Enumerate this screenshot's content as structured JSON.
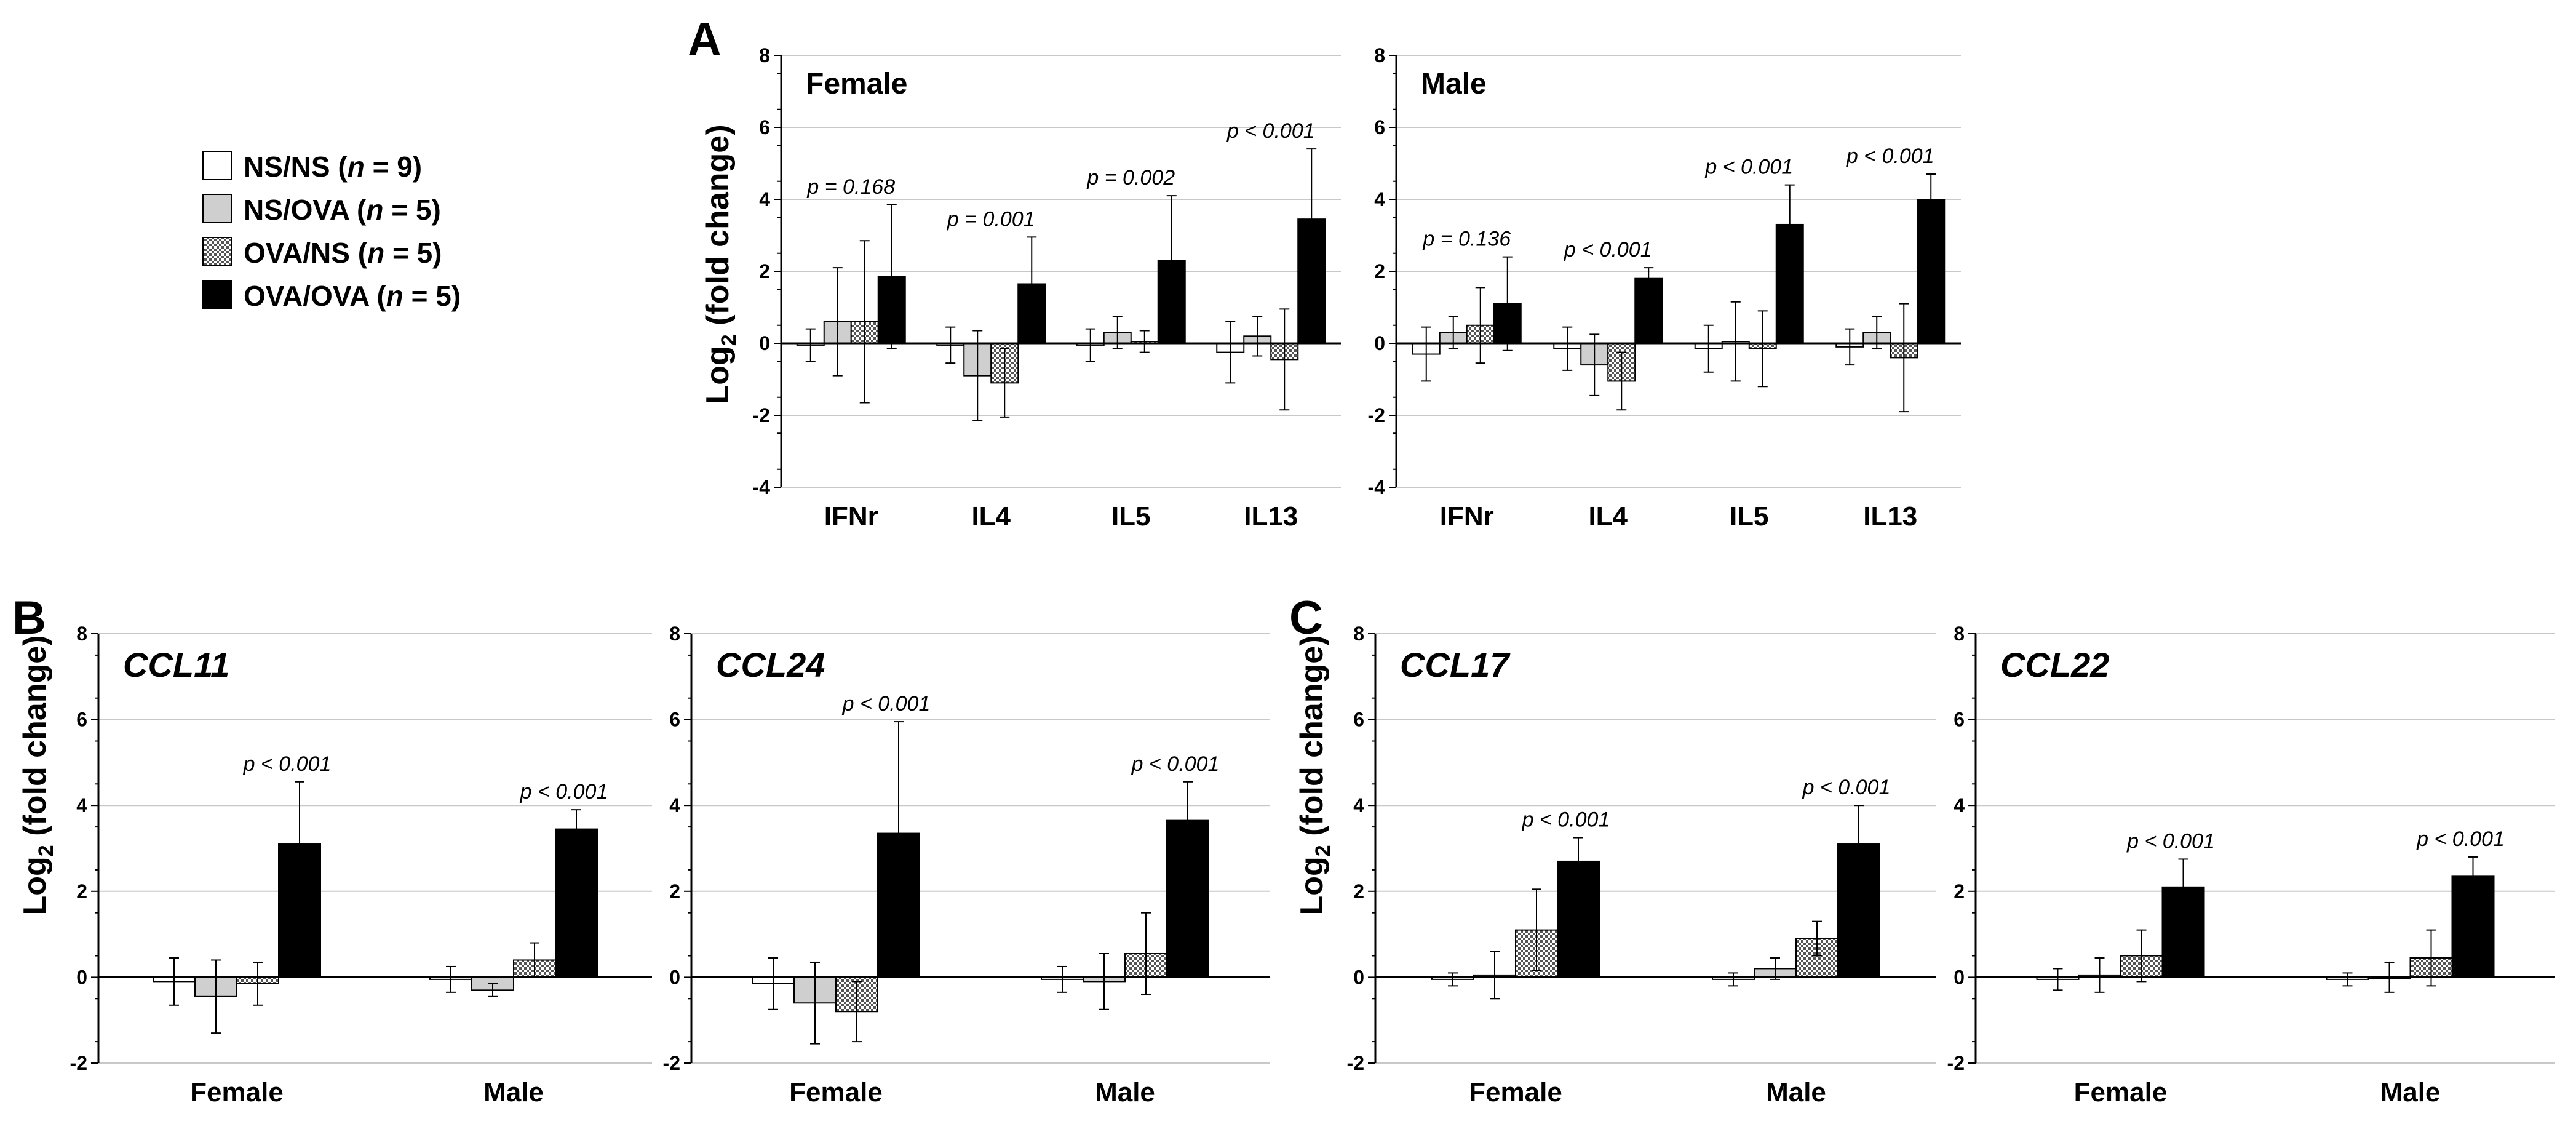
{
  "legend": {
    "items": [
      {
        "key": "nsns",
        "label": "NS/NS (n = 9)",
        "pre": "NS/NS (",
        "n": "n",
        "post": " = 9)",
        "fill": "#ffffff"
      },
      {
        "key": "nsova",
        "label": "NS/OVA (n = 5)",
        "pre": "NS/OVA (",
        "n": "n",
        "post": " = 5)",
        "fill": "#cfcfcf"
      },
      {
        "key": "ovans",
        "label": "OVA/NS (n = 5)",
        "pre": "OVA/NS (",
        "n": "n",
        "post": " = 5)",
        "fill": "pattern"
      },
      {
        "key": "ovaova",
        "label": "OVA/OVA (n = 5)",
        "pre": "OVA/OVA (",
        "n": "n",
        "post": " = 5)",
        "fill": "#000000"
      }
    ]
  },
  "y_label": {
    "pre": "Log",
    "sub": "2",
    "post": " (fold change)"
  },
  "panel_labels": [
    "A",
    "B",
    "C"
  ],
  "chart_data": [
    {
      "type": "bar",
      "panel": "A",
      "title": "Female",
      "title_style": "normal",
      "categories": [
        "IFNr",
        "IL4",
        "IL5",
        "IL13"
      ],
      "ylim": [
        -4,
        8
      ],
      "yticks": [
        -4,
        -2,
        0,
        2,
        4,
        6,
        8
      ],
      "grid": true,
      "series": [
        {
          "name": "NS/NS",
          "values": [
            -0.05,
            -0.05,
            -0.05,
            -0.25
          ],
          "err": [
            0.45,
            0.5,
            0.45,
            0.85
          ]
        },
        {
          "name": "NS/OVA",
          "values": [
            0.6,
            -0.9,
            0.3,
            0.2
          ],
          "err": [
            1.5,
            1.25,
            0.45,
            0.55
          ]
        },
        {
          "name": "OVA/NS",
          "values": [
            0.6,
            -1.1,
            0.05,
            -0.45
          ],
          "err": [
            2.25,
            0.95,
            0.3,
            1.4
          ]
        },
        {
          "name": "OVA/OVA",
          "values": [
            1.85,
            1.65,
            2.3,
            3.45
          ],
          "err": [
            2.0,
            1.3,
            1.8,
            1.95
          ]
        }
      ],
      "annotations": [
        "p = 0.168",
        "p = 0.001",
        "p = 0.002",
        "p < 0.001"
      ]
    },
    {
      "type": "bar",
      "panel": "A",
      "title": "Male",
      "title_style": "normal",
      "categories": [
        "IFNr",
        "IL4",
        "IL5",
        "IL13"
      ],
      "ylim": [
        -4,
        8
      ],
      "yticks": [
        -4,
        -2,
        0,
        2,
        4,
        6,
        8
      ],
      "grid": true,
      "series": [
        {
          "name": "NS/NS",
          "values": [
            -0.3,
            -0.15,
            -0.15,
            -0.1
          ],
          "err": [
            0.75,
            0.6,
            0.65,
            0.5
          ]
        },
        {
          "name": "NS/OVA",
          "values": [
            0.3,
            -0.6,
            0.05,
            0.3
          ],
          "err": [
            0.45,
            0.85,
            1.1,
            0.45
          ]
        },
        {
          "name": "OVA/NS",
          "values": [
            0.5,
            -1.05,
            -0.15,
            -0.4
          ],
          "err": [
            1.05,
            0.8,
            1.05,
            1.5
          ]
        },
        {
          "name": "OVA/OVA",
          "values": [
            1.1,
            1.8,
            3.3,
            4.0
          ],
          "err": [
            1.3,
            0.3,
            1.1,
            0.7
          ]
        }
      ],
      "annotations": [
        "p = 0.136",
        "p < 0.001",
        "p < 0.001",
        "p < 0.001"
      ]
    },
    {
      "type": "bar",
      "panel": "B",
      "title": "CCL11",
      "title_style": "italic",
      "categories": [
        "Female",
        "Male"
      ],
      "ylim": [
        -2,
        8
      ],
      "yticks": [
        -2,
        0,
        2,
        4,
        6,
        8
      ],
      "grid": true,
      "series": [
        {
          "name": "NS/NS",
          "values": [
            -0.1,
            -0.05
          ],
          "err": [
            0.55,
            0.3
          ]
        },
        {
          "name": "NS/OVA",
          "values": [
            -0.45,
            -0.3
          ],
          "err": [
            0.85,
            0.15
          ]
        },
        {
          "name": "OVA/NS",
          "values": [
            -0.15,
            0.4
          ],
          "err": [
            0.5,
            0.4
          ]
        },
        {
          "name": "OVA/OVA",
          "values": [
            3.1,
            3.45
          ],
          "err": [
            1.45,
            0.45
          ]
        }
      ],
      "annotations": [
        "p < 0.001",
        "p < 0.001"
      ]
    },
    {
      "type": "bar",
      "panel": "B",
      "title": "CCL24",
      "title_style": "italic",
      "categories": [
        "Female",
        "Male"
      ],
      "ylim": [
        -2,
        8
      ],
      "yticks": [
        -2,
        0,
        2,
        4,
        6,
        8
      ],
      "grid": true,
      "series": [
        {
          "name": "NS/NS",
          "values": [
            -0.15,
            -0.05
          ],
          "err": [
            0.6,
            0.3
          ]
        },
        {
          "name": "NS/OVA",
          "values": [
            -0.6,
            -0.1
          ],
          "err": [
            0.95,
            0.65
          ]
        },
        {
          "name": "OVA/NS",
          "values": [
            -0.8,
            0.55
          ],
          "err": [
            0.7,
            0.95
          ]
        },
        {
          "name": "OVA/OVA",
          "values": [
            3.35,
            3.65
          ],
          "err": [
            2.6,
            0.9
          ]
        }
      ],
      "annotations": [
        "p < 0.001",
        "p < 0.001"
      ]
    },
    {
      "type": "bar",
      "panel": "C",
      "title": "CCL17",
      "title_style": "italic",
      "categories": [
        "Female",
        "Male"
      ],
      "ylim": [
        -2,
        8
      ],
      "yticks": [
        -2,
        0,
        2,
        4,
        6,
        8
      ],
      "grid": true,
      "series": [
        {
          "name": "NS/NS",
          "values": [
            -0.05,
            -0.05
          ],
          "err": [
            0.15,
            0.15
          ]
        },
        {
          "name": "NS/OVA",
          "values": [
            0.05,
            0.2
          ],
          "err": [
            0.55,
            0.25
          ]
        },
        {
          "name": "OVA/NS",
          "values": [
            1.1,
            0.9
          ],
          "err": [
            0.95,
            0.4
          ]
        },
        {
          "name": "OVA/OVA",
          "values": [
            2.7,
            3.1
          ],
          "err": [
            0.55,
            0.9
          ]
        }
      ],
      "annotations": [
        "p < 0.001",
        "p < 0.001"
      ]
    },
    {
      "type": "bar",
      "panel": "C",
      "title": "CCL22",
      "title_style": "italic",
      "categories": [
        "Female",
        "Male"
      ],
      "ylim": [
        -2,
        8
      ],
      "yticks": [
        -2,
        0,
        2,
        4,
        6,
        8
      ],
      "grid": true,
      "series": [
        {
          "name": "NS/NS",
          "values": [
            -0.05,
            -0.05
          ],
          "err": [
            0.25,
            0.15
          ]
        },
        {
          "name": "NS/OVA",
          "values": [
            0.05,
            0.0
          ],
          "err": [
            0.4,
            0.35
          ]
        },
        {
          "name": "OVA/NS",
          "values": [
            0.5,
            0.45
          ],
          "err": [
            0.6,
            0.65
          ]
        },
        {
          "name": "OVA/OVA",
          "values": [
            2.1,
            2.35
          ],
          "err": [
            0.65,
            0.45
          ]
        }
      ],
      "annotations": [
        "p < 0.001",
        "p < 0.001"
      ]
    }
  ]
}
